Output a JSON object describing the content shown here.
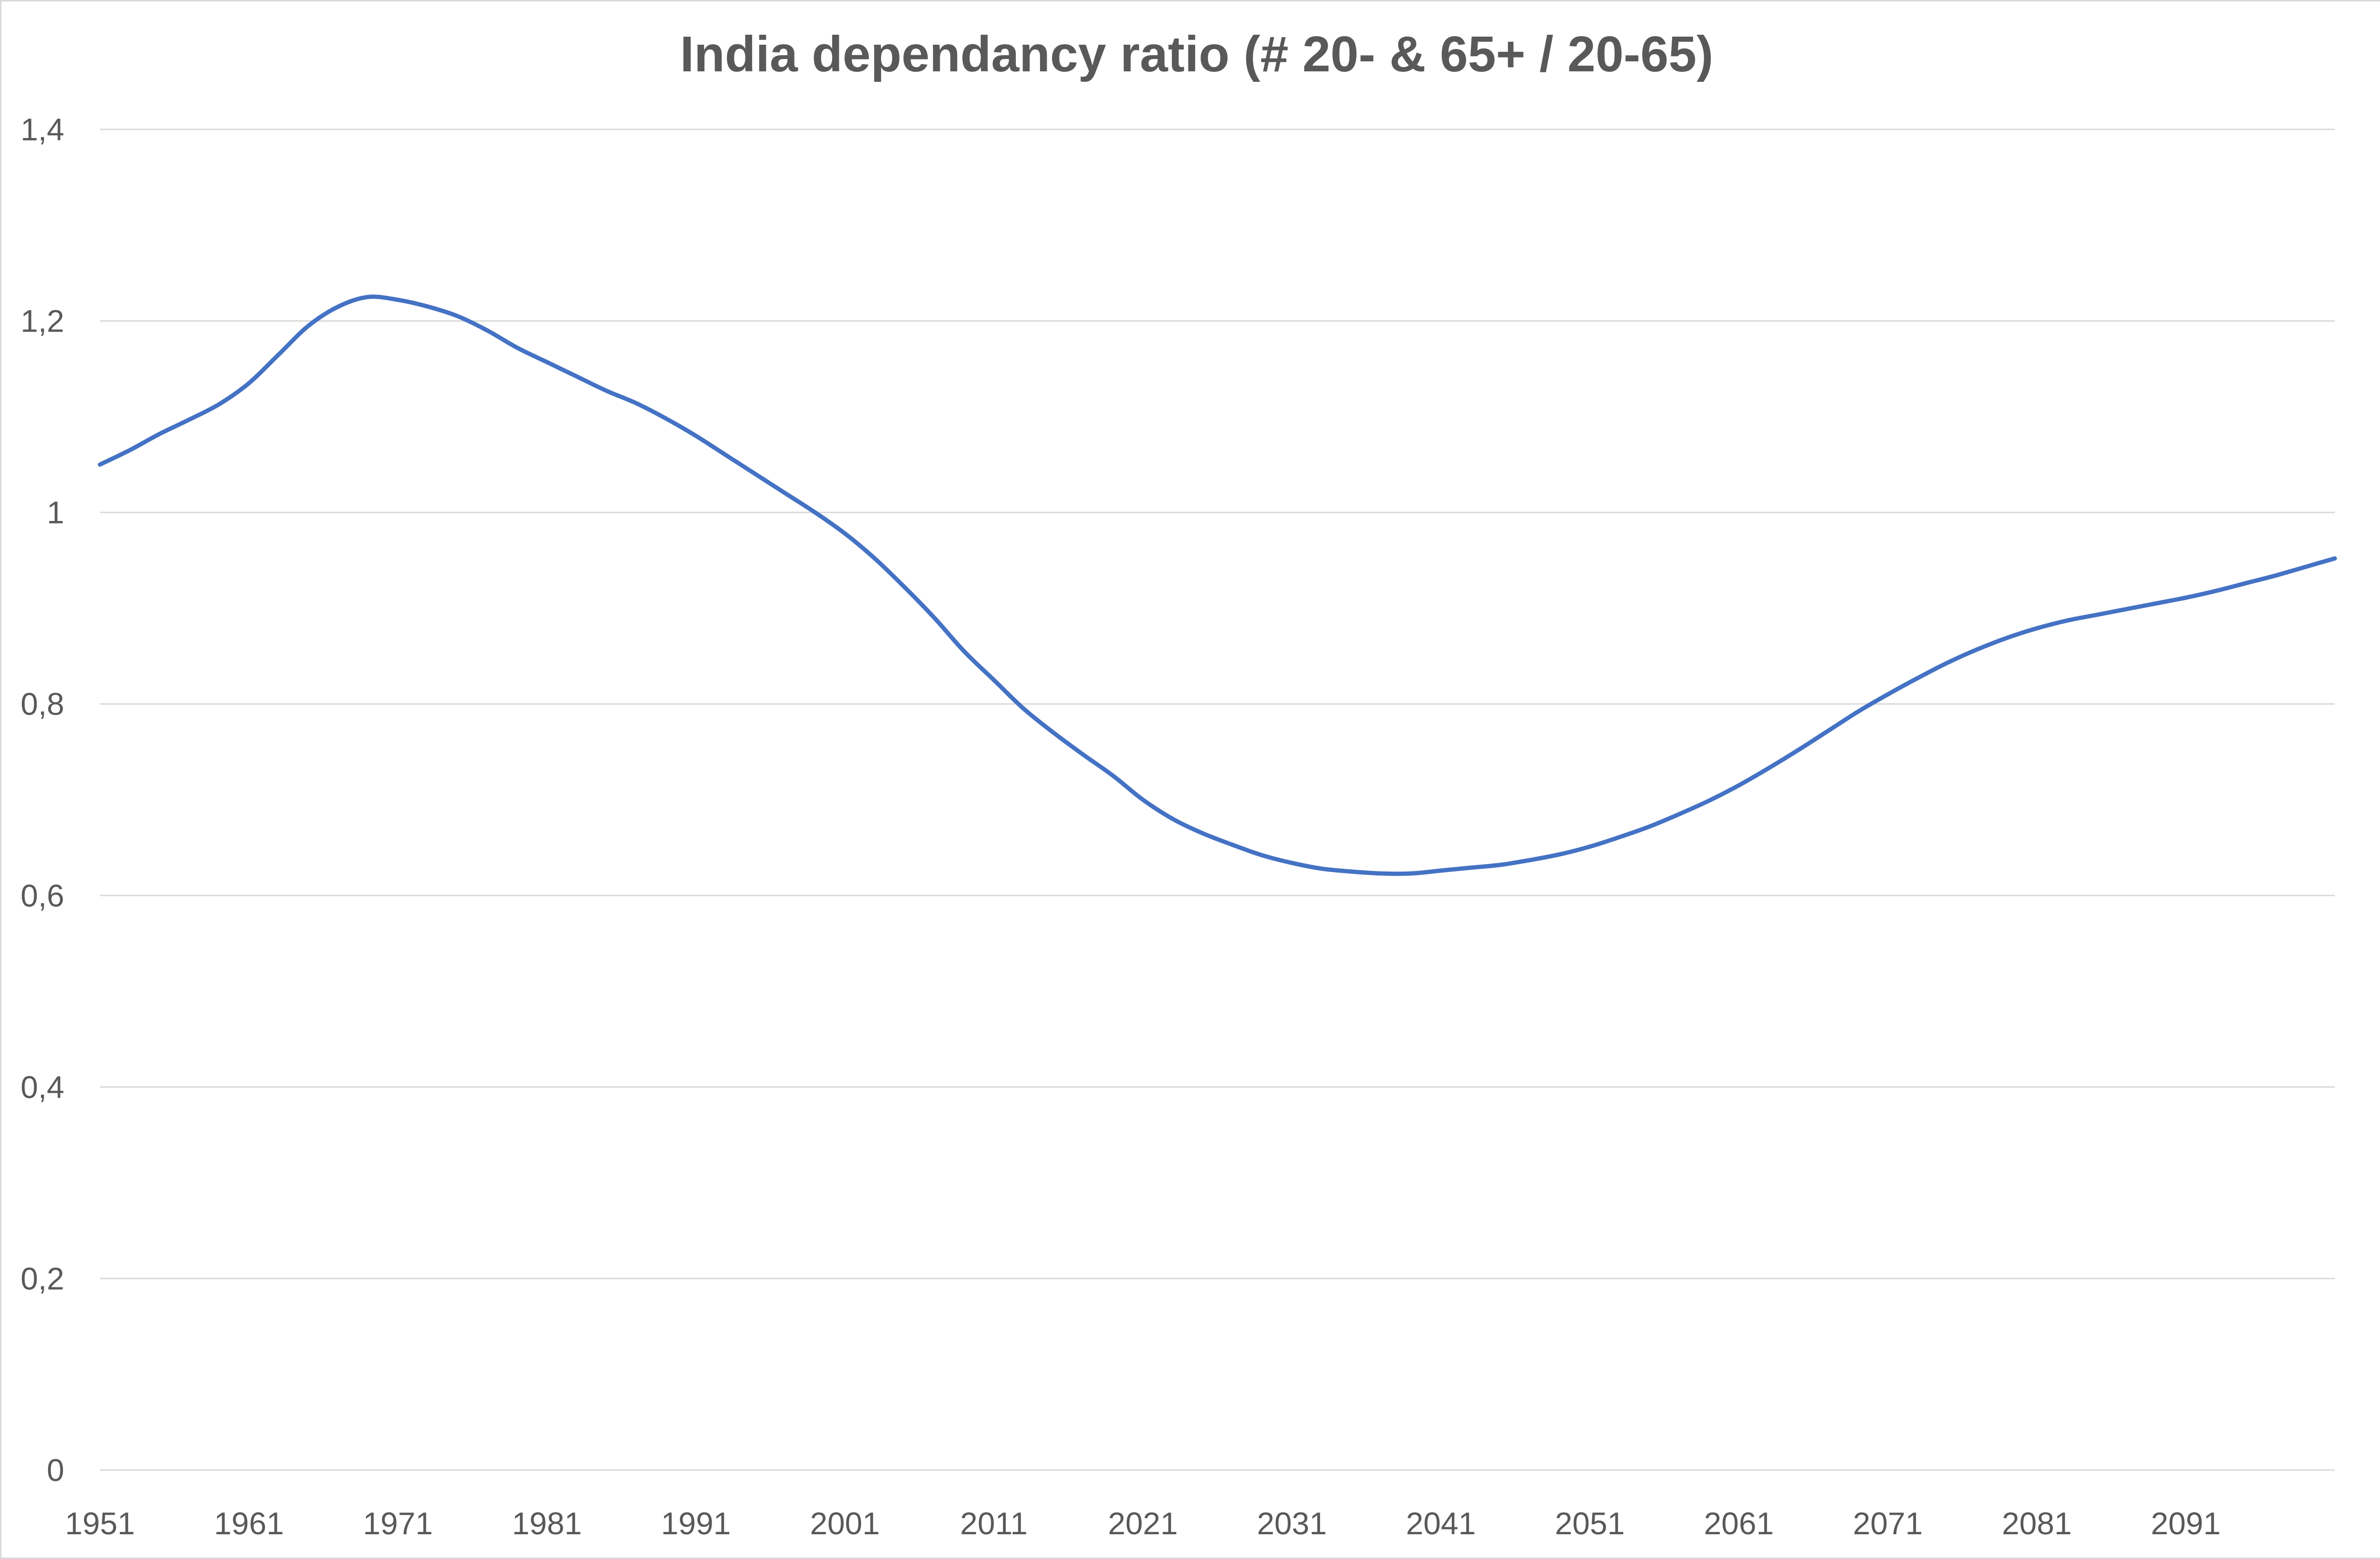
{
  "chart_data": {
    "type": "line",
    "title": "India dependancy ratio (# 20- & 65+ / 20-65)",
    "xlabel": "",
    "ylabel": "",
    "ylim": [
      0,
      1.4
    ],
    "xlim": [
      1951,
      2101
    ],
    "grid": true,
    "legend": "none",
    "y_ticks": [
      {
        "value": 0,
        "label": "0"
      },
      {
        "value": 0.2,
        "label": "0,2"
      },
      {
        "value": 0.4,
        "label": "0,4"
      },
      {
        "value": 0.6,
        "label": "0,6"
      },
      {
        "value": 0.8,
        "label": "0,8"
      },
      {
        "value": 1,
        "label": "1"
      },
      {
        "value": 1.2,
        "label": "1,2"
      },
      {
        "value": 1.4,
        "label": "1,4"
      }
    ],
    "x_ticks": [
      {
        "value": 1951,
        "label": "1951"
      },
      {
        "value": 1961,
        "label": "1961"
      },
      {
        "value": 1971,
        "label": "1971"
      },
      {
        "value": 1981,
        "label": "1981"
      },
      {
        "value": 1991,
        "label": "1991"
      },
      {
        "value": 2001,
        "label": "2001"
      },
      {
        "value": 2011,
        "label": "2011"
      },
      {
        "value": 2021,
        "label": "2021"
      },
      {
        "value": 2031,
        "label": "2031"
      },
      {
        "value": 2041,
        "label": "2041"
      },
      {
        "value": 2051,
        "label": "2051"
      },
      {
        "value": 2061,
        "label": "2061"
      },
      {
        "value": 2071,
        "label": "2071"
      },
      {
        "value": 2081,
        "label": "2081"
      },
      {
        "value": 2091,
        "label": "2091"
      }
    ],
    "series": [
      {
        "color": "#4472c4",
        "x": [
          1951,
          1953,
          1955,
          1957,
          1959,
          1961,
          1963,
          1965,
          1967,
          1969,
          1971,
          1973,
          1975,
          1977,
          1979,
          1981,
          1983,
          1985,
          1987,
          1989,
          1991,
          1993,
          1995,
          1997,
          1999,
          2001,
          2003,
          2005,
          2007,
          2009,
          2011,
          2013,
          2015,
          2017,
          2019,
          2021,
          2023,
          2025,
          2027,
          2029,
          2031,
          2033,
          2035,
          2037,
          2039,
          2041,
          2043,
          2045,
          2047,
          2049,
          2051,
          2053,
          2055,
          2057,
          2059,
          2061,
          2063,
          2065,
          2067,
          2069,
          2071,
          2073,
          2075,
          2077,
          2079,
          2081,
          2083,
          2085,
          2087,
          2089,
          2091,
          2093,
          2095,
          2097,
          2099,
          2101
        ],
        "values": [
          1.05,
          1.065,
          1.082,
          1.097,
          1.113,
          1.135,
          1.165,
          1.195,
          1.215,
          1.225,
          1.222,
          1.215,
          1.205,
          1.19,
          1.172,
          1.157,
          1.142,
          1.127,
          1.114,
          1.098,
          1.08,
          1.06,
          1.04,
          1.02,
          1.0,
          0.978,
          0.952,
          0.922,
          0.89,
          0.855,
          0.825,
          0.795,
          0.77,
          0.747,
          0.725,
          0.7,
          0.68,
          0.665,
          0.653,
          0.642,
          0.634,
          0.628,
          0.625,
          0.623,
          0.623,
          0.626,
          0.629,
          0.632,
          0.637,
          0.643,
          0.651,
          0.661,
          0.672,
          0.685,
          0.699,
          0.715,
          0.733,
          0.752,
          0.772,
          0.792,
          0.81,
          0.827,
          0.843,
          0.857,
          0.869,
          0.879,
          0.887,
          0.893,
          0.899,
          0.905,
          0.911,
          0.918,
          0.926,
          0.934,
          0.943,
          0.952
        ]
      }
    ]
  }
}
